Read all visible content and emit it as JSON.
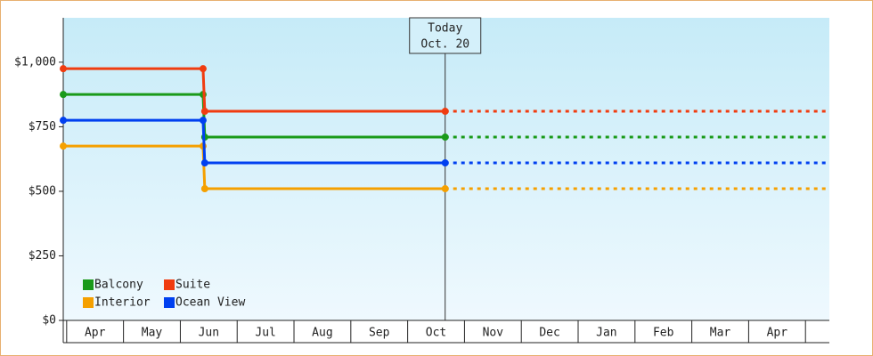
{
  "chart_data": {
    "type": "step-line",
    "categories": [
      "Apr",
      "May",
      "Jun",
      "Jul",
      "Aug",
      "Sep",
      "Oct",
      "Nov",
      "Dec",
      "Jan",
      "Feb",
      "Mar",
      "Apr"
    ],
    "xticks": [
      0,
      1,
      2,
      3,
      4,
      5,
      6,
      7,
      8,
      9,
      10,
      11,
      12,
      13
    ],
    "xlim": [
      -0.06,
      13.42
    ],
    "ylim": [
      0,
      1172
    ],
    "yticks": [
      0,
      250,
      500,
      750,
      1000
    ],
    "ytick_labels": [
      "$0",
      "$250",
      "$500",
      "$750",
      "$1,000"
    ],
    "today": {
      "x": 6.66,
      "label": [
        "Today",
        "Oct. 20"
      ]
    },
    "series": [
      {
        "name": "Balcony",
        "color": "#1a9a1a",
        "x": [
          -0.06,
          2.4,
          2.43,
          6.66
        ],
        "values": [
          875,
          875,
          710,
          710
        ]
      },
      {
        "name": "Suite",
        "color": "#f03c10",
        "x": [
          -0.06,
          2.4,
          2.43,
          6.66
        ],
        "values": [
          975,
          975,
          810,
          810
        ]
      },
      {
        "name": "Interior",
        "color": "#f5a000",
        "x": [
          -0.06,
          2.4,
          2.43,
          6.66
        ],
        "values": [
          675,
          675,
          510,
          510
        ]
      },
      {
        "name": "Ocean View",
        "color": "#0040f0",
        "x": [
          -0.06,
          2.4,
          2.43,
          6.66
        ],
        "values": [
          775,
          775,
          610,
          610
        ]
      }
    ],
    "legend": "lower left"
  }
}
